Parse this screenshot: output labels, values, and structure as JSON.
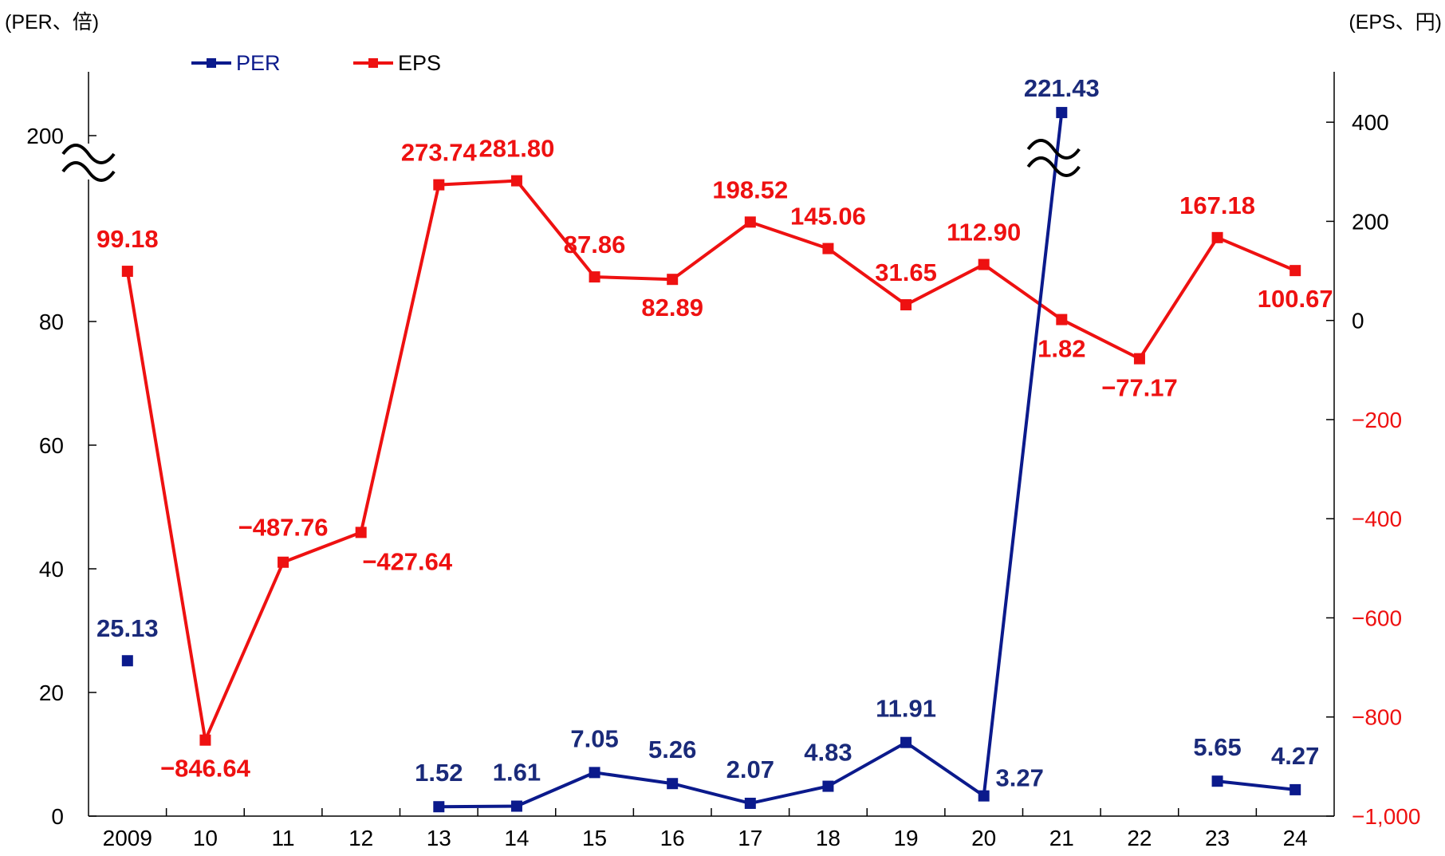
{
  "chart_data": {
    "type": "line",
    "left_axis_unit": "(PER、倍)",
    "right_axis_unit": "(EPS、円)",
    "categories": [
      "2009",
      "10",
      "11",
      "12",
      "13",
      "14",
      "15",
      "16",
      "17",
      "18",
      "19",
      "20",
      "21",
      "22",
      "23",
      "24"
    ],
    "left_axis": {
      "ticks": [
        "0",
        "20",
        "40",
        "60",
        "80",
        "200"
      ],
      "break_between": [
        80,
        200
      ]
    },
    "right_axis": {
      "ticks": [
        "−1,000",
        "−800",
        "−600",
        "−400",
        "−200",
        "0",
        "200",
        "400"
      ],
      "ylim": [
        -1000,
        500
      ]
    },
    "legend_position": "top-left",
    "series": [
      {
        "name": "PER",
        "color": "#0b1a8c",
        "axis": "left",
        "values": [
          25.13,
          null,
          null,
          null,
          1.52,
          1.61,
          7.05,
          5.26,
          2.07,
          4.83,
          11.91,
          3.27,
          221.43,
          null,
          5.65,
          4.27
        ],
        "labels": [
          "25.13",
          "",
          "",
          "",
          "1.52",
          "1.61",
          "7.05",
          "5.26",
          "2.07",
          "4.83",
          "11.91",
          "3.27",
          "221.43",
          "",
          "5.65",
          "4.27"
        ]
      },
      {
        "name": "EPS",
        "color": "#ee1111",
        "axis": "right",
        "values": [
          99.18,
          -846.64,
          -487.76,
          -427.64,
          273.74,
          281.8,
          87.86,
          82.89,
          198.52,
          145.06,
          31.65,
          112.9,
          1.82,
          -77.17,
          167.18,
          100.67
        ],
        "labels": [
          "99.18",
          "−846.64",
          "−487.76",
          "−427.64",
          "273.74",
          "281.80",
          "87.86",
          "82.89",
          "198.52",
          "145.06",
          "31.65",
          "112.90",
          "1.82",
          "−77.17",
          "167.18",
          "100.67"
        ]
      }
    ]
  }
}
